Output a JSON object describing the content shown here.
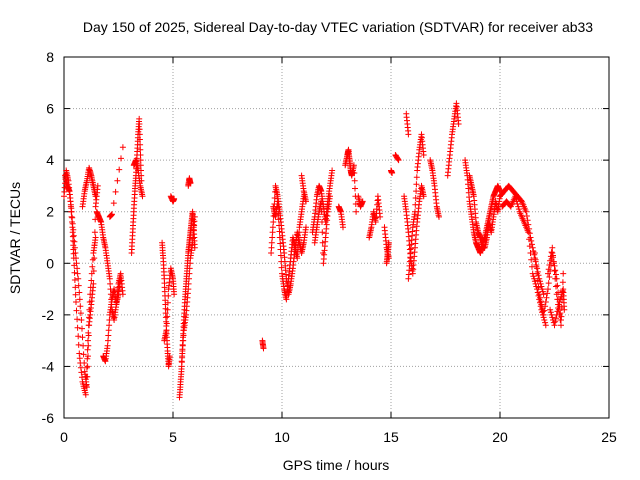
{
  "chart_data": {
    "type": "scatter",
    "title": "Day 150 of 2025, Sidereal Day-to-day VTEC variation (SDTVAR) for receiver ab33",
    "xlabel": "GPS time / hours",
    "ylabel": "SDTVAR / TECUs",
    "xlim": [
      0,
      25
    ],
    "ylim": [
      -6,
      8
    ],
    "xticks": [
      0,
      5,
      10,
      15,
      20,
      25
    ],
    "yticks": [
      -6,
      -4,
      -2,
      0,
      2,
      4,
      6,
      8
    ],
    "grid": true,
    "marker": "+",
    "series": [
      {
        "name": "SDTVAR",
        "color": "#ff0000",
        "segments": [
          {
            "t": [
              0.0,
              0.1,
              0.2,
              0.3,
              0.4,
              0.45,
              0.55,
              0.7,
              0.85,
              1.0,
              1.1,
              1.2,
              1.35,
              1.45
            ],
            "v": [
              2.6,
              3.6,
              3.2,
              2.4,
              1.2,
              0.2,
              -1.5,
              -3.5,
              -4.6,
              -5.1,
              -3.0,
              -1.2,
              0.4,
              1.0
            ]
          },
          {
            "t": [
              0.05,
              0.15,
              0.25,
              0.35,
              0.5,
              0.65,
              0.8,
              0.95,
              1.05,
              1.15,
              1.25,
              1.35,
              1.45,
              1.55
            ],
            "v": [
              3.4,
              3.0,
              2.8,
              2.0,
              0.6,
              -0.6,
              -2.2,
              -4.2,
              -4.8,
              -2.4,
              -1.6,
              -0.8,
              2.2,
              3.0
            ]
          },
          {
            "t": [
              0.85,
              0.95,
              1.05,
              1.15,
              1.25,
              1.35,
              1.45
            ],
            "v": [
              2.2,
              2.8,
              3.2,
              3.7,
              3.4,
              3.0,
              2.6
            ]
          },
          {
            "t": [
              1.5,
              1.6,
              1.7,
              1.8,
              1.9,
              2.0,
              2.1,
              2.2,
              2.3,
              2.4,
              2.5,
              2.6,
              2.7
            ],
            "v": [
              2.0,
              1.8,
              1.6,
              1.0,
              0.6,
              0.0,
              -0.6,
              -1.8,
              -2.2,
              -1.6,
              -0.8,
              -0.4,
              -1.2
            ]
          },
          {
            "t": [
              1.8,
              1.9,
              2.0,
              2.1,
              2.2,
              2.3,
              2.4,
              2.5,
              2.6
            ],
            "v": [
              -3.6,
              -3.8,
              -3.2,
              -2.0,
              -1.4,
              -1.0,
              -1.6,
              -1.2,
              -0.6
            ]
          },
          {
            "t": [
              2.1,
              2.2,
              2.7
            ],
            "v": [
              1.8,
              1.9,
              4.5
            ]
          },
          {
            "t": [
              3.1,
              3.15,
              3.2,
              3.25,
              3.3,
              3.35,
              3.4,
              3.45,
              3.5,
              3.55
            ],
            "v": [
              0.4,
              1.2,
              2.0,
              2.8,
              3.4,
              4.2,
              5.0,
              5.6,
              4.4,
              3.2
            ]
          },
          {
            "t": [
              3.2,
              3.3,
              3.4,
              3.5,
              3.6
            ],
            "v": [
              3.8,
              4.0,
              3.6,
              3.0,
              2.6
            ]
          },
          {
            "t": [
              4.5,
              4.55,
              4.6,
              4.65,
              4.7,
              4.75,
              4.8,
              4.85
            ],
            "v": [
              0.8,
              0.2,
              -0.6,
              -1.6,
              -2.6,
              -3.4,
              -4.0,
              -3.6
            ]
          },
          {
            "t": [
              4.6,
              4.7,
              4.8,
              4.9,
              5.0,
              5.05
            ],
            "v": [
              -3.0,
              -2.6,
              -1.0,
              -0.2,
              -0.6,
              -1.2
            ]
          },
          {
            "t": [
              4.9,
              5.0,
              5.05
            ],
            "v": [
              2.6,
              2.4,
              2.5
            ]
          },
          {
            "t": [
              5.3,
              5.35,
              5.4,
              5.45,
              5.5,
              5.55,
              5.6,
              5.65,
              5.7,
              5.75,
              5.8,
              5.85,
              5.9,
              5.95,
              6.0
            ],
            "v": [
              -5.2,
              -4.6,
              -4.0,
              -3.0,
              -2.2,
              -1.4,
              -0.8,
              -0.2,
              0.4,
              0.8,
              1.2,
              1.6,
              2.0,
              1.4,
              0.6
            ]
          },
          {
            "t": [
              5.4,
              5.5,
              5.6,
              5.7,
              5.8,
              5.9,
              6.0
            ],
            "v": [
              -3.8,
              -2.6,
              -2.0,
              -1.0,
              0.2,
              0.8,
              1.8
            ]
          },
          {
            "t": [
              5.7,
              5.75,
              5.8
            ],
            "v": [
              3.0,
              3.3,
              3.1
            ]
          },
          {
            "t": [
              9.1,
              9.15
            ],
            "v": [
              -3.0,
              -3.3
            ]
          },
          {
            "t": [
              9.5,
              9.6,
              9.7,
              9.8,
              9.9,
              10.0,
              10.1,
              10.2,
              10.3,
              10.4,
              10.5,
              10.6,
              10.7,
              10.8,
              10.9,
              11.0,
              11.1
            ],
            "v": [
              0.4,
              1.6,
              3.0,
              2.6,
              2.0,
              1.2,
              0.4,
              -0.6,
              -1.2,
              -0.8,
              -0.2,
              0.6,
              1.2,
              0.8,
              0.4,
              0.8,
              1.4
            ]
          },
          {
            "t": [
              9.6,
              9.7,
              9.8,
              9.9,
              10.0,
              10.1,
              10.2,
              10.3,
              10.4,
              10.5,
              10.6,
              10.7,
              10.8,
              10.9,
              11.0
            ],
            "v": [
              2.2,
              1.8,
              2.4,
              1.0,
              -0.4,
              -1.0,
              -1.4,
              -0.6,
              0.2,
              1.0,
              0.6,
              0.2,
              1.4,
              2.0,
              2.6
            ]
          },
          {
            "t": [
              10.9,
              11.0,
              11.1
            ],
            "v": [
              3.4,
              2.8,
              2.4
            ]
          },
          {
            "t": [
              11.4,
              11.5,
              11.6,
              11.7,
              11.8,
              11.9,
              12.0,
              12.1,
              12.2,
              12.3
            ],
            "v": [
              1.2,
              1.8,
              2.6,
              3.0,
              2.8,
              2.2,
              1.6,
              2.4,
              3.0,
              3.6
            ]
          },
          {
            "t": [
              11.5,
              11.6,
              11.7,
              11.8,
              11.9,
              12.0,
              12.1,
              12.2
            ],
            "v": [
              0.8,
              1.4,
              2.0,
              2.4,
              0.0,
              1.0,
              2.0,
              2.6
            ]
          },
          {
            "t": [
              12.6,
              12.7,
              12.8
            ],
            "v": [
              2.2,
              2.0,
              1.4
            ]
          },
          {
            "t": [
              12.9,
              13.0,
              13.05,
              13.1,
              13.15,
              13.2,
              13.3,
              13.4
            ],
            "v": [
              3.8,
              4.2,
              4.4,
              4.0,
              3.6,
              3.4,
              3.8,
              2.0
            ]
          },
          {
            "t": [
              13.5,
              13.6,
              13.7
            ],
            "v": [
              2.6,
              2.2,
              2.4
            ]
          },
          {
            "t": [
              14.0,
              14.1,
              14.2,
              14.3,
              14.4,
              14.5
            ],
            "v": [
              1.0,
              1.4,
              2.0,
              1.6,
              2.6,
              1.8
            ]
          },
          {
            "t": [
              14.7,
              14.8,
              14.9
            ],
            "v": [
              1.4,
              0.6,
              0.2
            ]
          },
          {
            "t": [
              14.8,
              14.85,
              14.9
            ],
            "v": [
              0.0,
              0.4,
              0.8
            ]
          },
          {
            "t": [
              15.0,
              15.05
            ],
            "v": [
              3.6,
              3.5
            ]
          },
          {
            "t": [
              15.2,
              15.35
            ],
            "v": [
              4.2,
              4.0
            ]
          },
          {
            "t": [
              15.6,
              15.7,
              15.8,
              15.9,
              16.0,
              16.1,
              16.2,
              16.3,
              16.4,
              16.5
            ],
            "v": [
              2.6,
              2.0,
              1.2,
              0.2,
              -0.4,
              0.6,
              1.6,
              2.4,
              3.0,
              2.6
            ]
          },
          {
            "t": [
              15.8,
              15.9,
              16.0,
              16.1,
              16.2,
              16.3,
              16.4,
              16.5
            ],
            "v": [
              -0.6,
              0.4,
              1.4,
              2.0,
              3.6,
              4.4,
              5.0,
              4.2
            ]
          },
          {
            "t": [
              15.7,
              15.8
            ],
            "v": [
              5.8,
              5.0
            ]
          },
          {
            "t": [
              16.8,
              16.9,
              17.0,
              17.1,
              17.2
            ],
            "v": [
              4.0,
              3.6,
              3.0,
              2.2,
              1.8
            ]
          },
          {
            "t": [
              17.6,
              17.7,
              17.8,
              17.9,
              18.0,
              18.1
            ],
            "v": [
              3.4,
              4.2,
              5.0,
              5.6,
              6.2,
              5.4
            ]
          },
          {
            "t": [
              18.4,
              18.5,
              18.6,
              18.7,
              18.8,
              18.9,
              19.0,
              19.1,
              19.2,
              19.3,
              19.4,
              19.5,
              19.6,
              19.7,
              19.8,
              19.9,
              20.0
            ],
            "v": [
              4.0,
              3.4,
              2.4,
              1.8,
              1.2,
              0.8,
              0.6,
              0.4,
              0.8,
              1.0,
              1.4,
              1.8,
              2.2,
              2.6,
              2.8,
              3.0,
              2.8
            ]
          },
          {
            "t": [
              18.6,
              18.7,
              18.8,
              18.9,
              19.0,
              19.1,
              19.2,
              19.3,
              19.4,
              19.5,
              19.6,
              19.7,
              19.8,
              19.9,
              20.0
            ],
            "v": [
              3.4,
              3.0,
              2.6,
              1.6,
              1.2,
              1.0,
              0.6,
              0.6,
              1.0,
              1.6,
              1.2,
              1.8,
              2.4,
              2.0,
              2.6
            ]
          },
          {
            "t": [
              20.0,
              20.2,
              20.4,
              20.6,
              20.8,
              21.0,
              21.2,
              21.4,
              21.6,
              21.8,
              22.0
            ],
            "v": [
              2.6,
              2.8,
              3.0,
              2.8,
              2.6,
              2.4,
              2.0,
              1.0,
              0.2,
              -0.6,
              -1.2
            ]
          },
          {
            "t": [
              20.1,
              20.3,
              20.5,
              20.7,
              20.9,
              21.1,
              21.3,
              21.5,
              21.7,
              21.9,
              22.1
            ],
            "v": [
              2.2,
              2.4,
              2.2,
              2.6,
              2.0,
              1.6,
              1.2,
              -0.4,
              -1.0,
              -1.8,
              -2.4
            ]
          },
          {
            "t": [
              21.6,
              21.8,
              22.0,
              22.2,
              22.4,
              22.6,
              22.8
            ],
            "v": [
              0.4,
              -1.2,
              -2.0,
              -1.0,
              0.4,
              -0.6,
              -2.2
            ]
          },
          {
            "t": [
              22.2,
              22.4,
              22.6,
              22.8,
              22.9
            ],
            "v": [
              -0.4,
              0.6,
              -1.2,
              -2.4,
              -0.4
            ]
          },
          {
            "t": [
              22.3,
              22.5,
              22.7,
              22.9,
              22.95
            ],
            "v": [
              -1.8,
              -2.4,
              -1.6,
              -1.0,
              -1.8
            ]
          }
        ]
      }
    ]
  }
}
